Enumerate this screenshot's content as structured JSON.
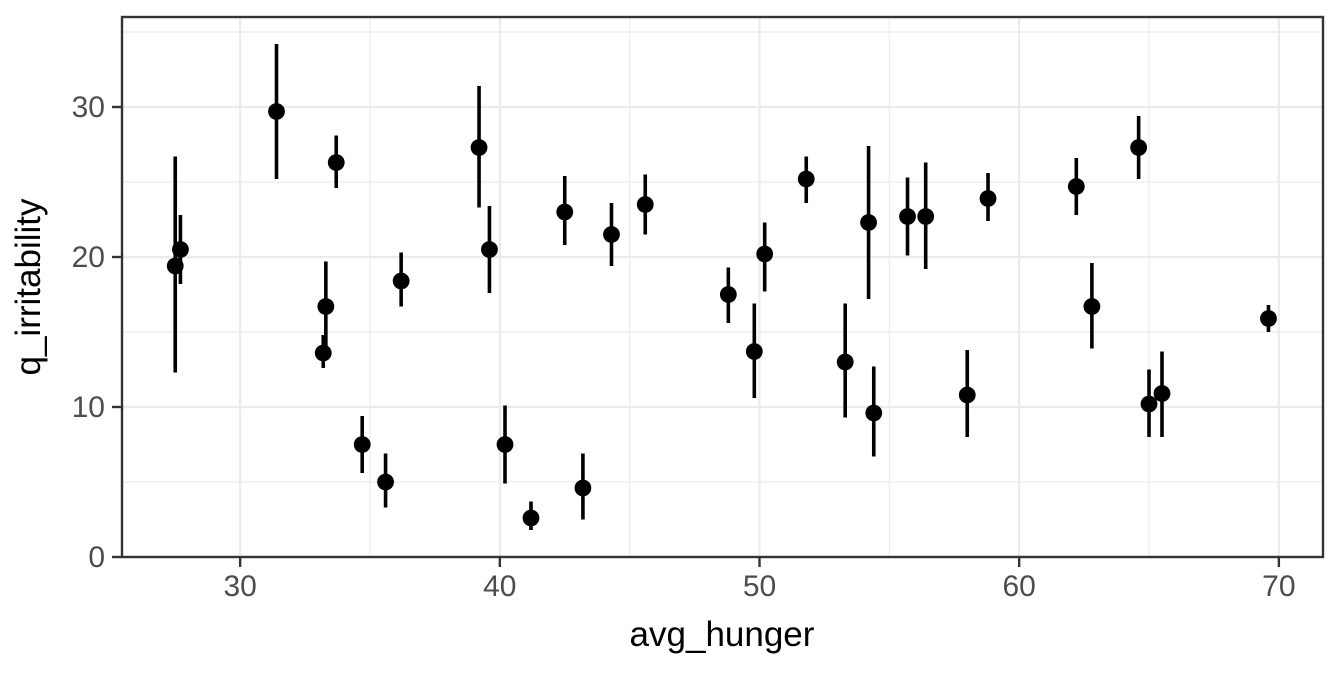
{
  "chart_data": {
    "type": "scatter",
    "subtype": "pointrange",
    "title": "",
    "xlabel": "avg_hunger",
    "ylabel": "q_irritability",
    "xlim": [
      25.45,
      71.7
    ],
    "ylim": [
      0,
      36
    ],
    "x_ticks": [
      30,
      40,
      50,
      60,
      70
    ],
    "y_ticks": [
      0,
      10,
      20,
      30
    ],
    "x_minor": [
      35,
      45,
      55,
      65
    ],
    "y_minor": [
      5,
      15,
      25,
      35
    ],
    "grid": "on",
    "legend": "none",
    "points": [
      {
        "x": 27.5,
        "y": 19.4,
        "ymin": 12.3,
        "ymax": 26.7
      },
      {
        "x": 27.7,
        "y": 20.5,
        "ymin": 18.2,
        "ymax": 22.8
      },
      {
        "x": 31.4,
        "y": 29.7,
        "ymin": 25.2,
        "ymax": 34.2
      },
      {
        "x": 33.2,
        "y": 13.6,
        "ymin": 12.6,
        "ymax": 14.8
      },
      {
        "x": 33.3,
        "y": 16.7,
        "ymin": 14.0,
        "ymax": 19.7
      },
      {
        "x": 33.7,
        "y": 26.3,
        "ymin": 24.6,
        "ymax": 28.1
      },
      {
        "x": 34.7,
        "y": 7.5,
        "ymin": 5.6,
        "ymax": 9.4
      },
      {
        "x": 35.6,
        "y": 5.0,
        "ymin": 3.3,
        "ymax": 6.9
      },
      {
        "x": 36.2,
        "y": 18.4,
        "ymin": 16.7,
        "ymax": 20.3
      },
      {
        "x": 39.2,
        "y": 27.3,
        "ymin": 23.3,
        "ymax": 31.4
      },
      {
        "x": 39.6,
        "y": 20.5,
        "ymin": 17.6,
        "ymax": 23.4
      },
      {
        "x": 40.2,
        "y": 7.5,
        "ymin": 4.9,
        "ymax": 10.1
      },
      {
        "x": 41.2,
        "y": 2.6,
        "ymin": 1.8,
        "ymax": 3.7
      },
      {
        "x": 42.5,
        "y": 23.0,
        "ymin": 20.8,
        "ymax": 25.4
      },
      {
        "x": 43.2,
        "y": 4.6,
        "ymin": 2.5,
        "ymax": 6.9
      },
      {
        "x": 44.3,
        "y": 21.5,
        "ymin": 19.4,
        "ymax": 23.6
      },
      {
        "x": 45.6,
        "y": 23.5,
        "ymin": 21.5,
        "ymax": 25.5
      },
      {
        "x": 48.8,
        "y": 17.5,
        "ymin": 15.6,
        "ymax": 19.3
      },
      {
        "x": 49.8,
        "y": 13.7,
        "ymin": 10.6,
        "ymax": 16.9
      },
      {
        "x": 50.2,
        "y": 20.2,
        "ymin": 17.7,
        "ymax": 22.3
      },
      {
        "x": 51.8,
        "y": 25.2,
        "ymin": 23.6,
        "ymax": 26.7
      },
      {
        "x": 53.3,
        "y": 13.0,
        "ymin": 9.3,
        "ymax": 16.9
      },
      {
        "x": 54.2,
        "y": 22.3,
        "ymin": 17.2,
        "ymax": 27.4
      },
      {
        "x": 54.4,
        "y": 9.6,
        "ymin": 6.7,
        "ymax": 12.7
      },
      {
        "x": 55.7,
        "y": 22.7,
        "ymin": 20.1,
        "ymax": 25.3
      },
      {
        "x": 56.4,
        "y": 22.7,
        "ymin": 19.2,
        "ymax": 26.3
      },
      {
        "x": 58.0,
        "y": 10.8,
        "ymin": 8.0,
        "ymax": 13.8
      },
      {
        "x": 58.8,
        "y": 23.9,
        "ymin": 22.4,
        "ymax": 25.6
      },
      {
        "x": 62.2,
        "y": 24.7,
        "ymin": 22.8,
        "ymax": 26.6
      },
      {
        "x": 62.8,
        "y": 16.7,
        "ymin": 13.9,
        "ymax": 19.6
      },
      {
        "x": 64.6,
        "y": 27.3,
        "ymin": 25.2,
        "ymax": 29.4
      },
      {
        "x": 65.0,
        "y": 10.2,
        "ymin": 8.0,
        "ymax": 12.5
      },
      {
        "x": 65.5,
        "y": 10.9,
        "ymin": 8.0,
        "ymax": 13.7
      },
      {
        "x": 69.6,
        "y": 15.9,
        "ymin": 15.0,
        "ymax": 16.8
      }
    ]
  },
  "style": {
    "point_color": "#000000",
    "range_color": "#000000",
    "grid_color": "#ebebeb",
    "panel_border_color": "#333333",
    "tick_color": "#333333",
    "tick_label_color": "#4d4d4d",
    "axis_title_color": "#000000",
    "panel_background": "#ffffff",
    "plot_background": "#ffffff"
  }
}
